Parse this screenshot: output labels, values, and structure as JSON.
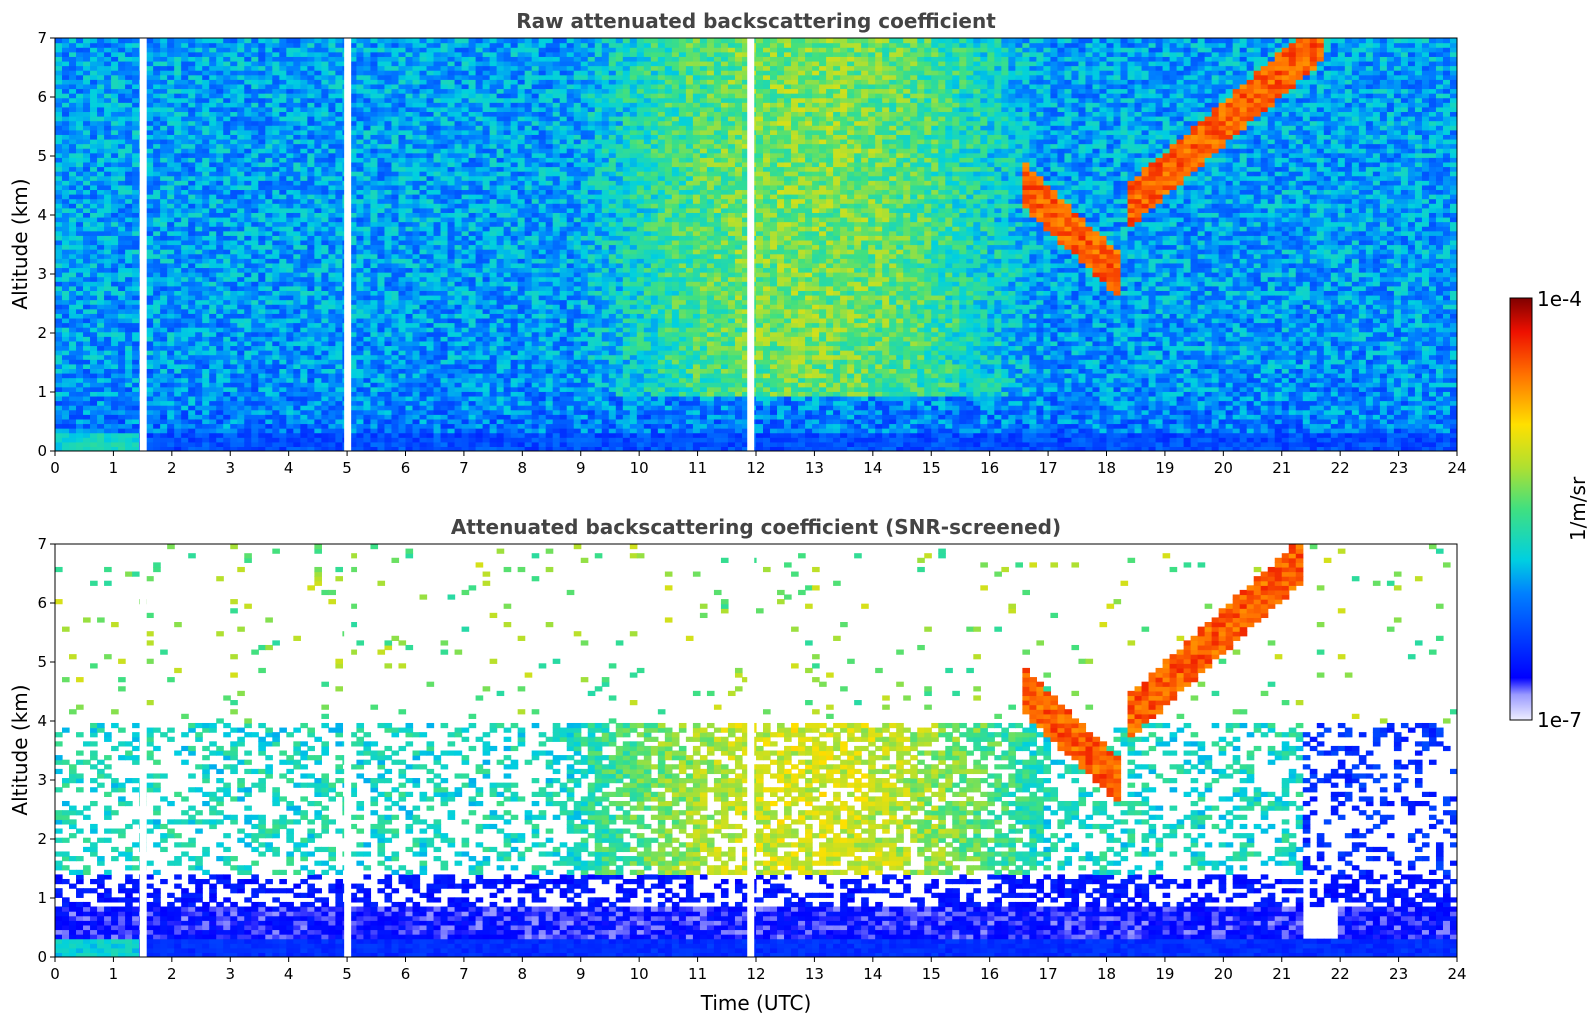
{
  "chart_data": [
    {
      "type": "heatmap",
      "title": "Raw attenuated backscattering coefficient",
      "xlabel": "",
      "ylabel": "Altitude (km)",
      "xlim": [
        0,
        24
      ],
      "ylim": [
        0,
        7
      ],
      "x_ticks": [
        "0",
        "1",
        "2",
        "3",
        "4",
        "5",
        "6",
        "7",
        "8",
        "9",
        "10",
        "11",
        "12",
        "13",
        "14",
        "15",
        "16",
        "17",
        "18",
        "19",
        "20",
        "21",
        "22",
        "23",
        "24"
      ],
      "y_ticks": [
        "0",
        "1",
        "2",
        "3",
        "4",
        "5",
        "6",
        "7"
      ],
      "colorbar": {
        "label": "1/m/sr",
        "min_label": "1e-7",
        "max_label": "1e-4",
        "scale": "log"
      },
      "features": {
        "surface_layer": {
          "altitude_top_km": 0.3
        },
        "noisy_background": "whole domain",
        "data_gaps_utc": [
          1.45,
          4.95,
          11.85
        ],
        "cloud_layer_descending": {
          "start_time": 16.6,
          "start_altitude_km": 4.5,
          "end_time": 18.2,
          "end_altitude_km": 3.0
        },
        "cloud_layer_ascending": {
          "start_time": 18.3,
          "start_altitude_km": 4.1,
          "end_time": 21.7,
          "end_altitude_km": 7.0
        }
      }
    },
    {
      "type": "heatmap",
      "title": "Attenuated backscattering coefficient (SNR-screened)",
      "xlabel": "Time (UTC)",
      "ylabel": "Altitude (km)",
      "xlim": [
        0,
        24
      ],
      "ylim": [
        0,
        7
      ],
      "x_ticks": [
        "0",
        "1",
        "2",
        "3",
        "4",
        "5",
        "6",
        "7",
        "8",
        "9",
        "10",
        "11",
        "12",
        "13",
        "14",
        "15",
        "16",
        "17",
        "18",
        "19",
        "20",
        "21",
        "22",
        "23",
        "24"
      ],
      "y_ticks": [
        "0",
        "1",
        "2",
        "3",
        "4",
        "5",
        "6",
        "7"
      ],
      "colorbar": {
        "label": "1/m/sr",
        "min_label": "1e-7",
        "max_label": "1e-4",
        "scale": "log"
      },
      "features": {
        "boundary_layer_top_km": 1.4,
        "aerosol_layer_km": [
          1.0,
          4.0
        ],
        "data_gaps_utc": [
          1.45,
          4.95,
          11.85
        ],
        "cloud_layer_descending": {
          "start_time": 16.6,
          "start_altitude_km": 4.5,
          "end_time": 18.2,
          "end_altitude_km": 3.0
        },
        "cloud_layer_ascending": {
          "start_time": 18.3,
          "start_altitude_km": 4.0,
          "end_time": 21.3,
          "end_altitude_km": 6.7
        }
      }
    }
  ]
}
